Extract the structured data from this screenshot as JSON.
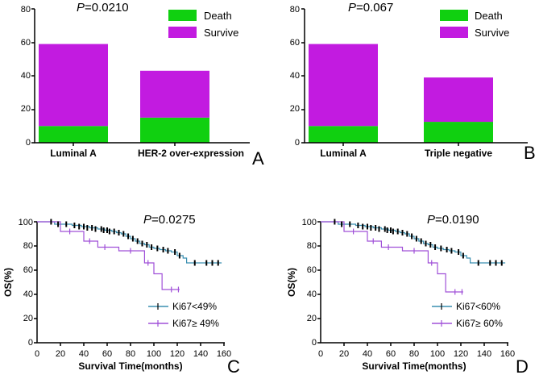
{
  "colors": {
    "death": "#10d010",
    "survive": "#c21be0",
    "km_low": "#3a8fb0",
    "km_high": "#a050d8"
  },
  "chart_data": [
    {
      "panel": "A",
      "type": "bar",
      "stacked": true,
      "p_prefix": "P",
      "p_value": "=0.0210",
      "categories": [
        "Luminal A",
        "HER-2 over-expression"
      ],
      "series": [
        {
          "name": "Death",
          "values": [
            10,
            15
          ],
          "color_key": "death"
        },
        {
          "name": "Survive",
          "values": [
            49,
            28
          ],
          "color_key": "survive"
        }
      ],
      "yticks": [
        "0",
        "20",
        "40",
        "60",
        "80"
      ],
      "ylim": [
        0,
        80
      ],
      "legend": "top-right"
    },
    {
      "panel": "B",
      "type": "bar",
      "stacked": true,
      "p_prefix": "P",
      "p_value": "=0.067",
      "categories": [
        "Luminal A",
        "Triple negative"
      ],
      "series": [
        {
          "name": "Death",
          "values": [
            10,
            12.5
          ],
          "color_key": "death"
        },
        {
          "name": "Survive",
          "values": [
            49,
            26.5
          ],
          "color_key": "survive"
        }
      ],
      "yticks": [
        "0",
        "20",
        "40",
        "60",
        "80"
      ],
      "ylim": [
        0,
        80
      ],
      "legend": "top-right"
    },
    {
      "panel": "C",
      "type": "line",
      "step": true,
      "p_prefix": "P",
      "p_value": "=0.0275",
      "xlabel": "Survival Time(months)",
      "ylabel": "OS(%)",
      "xticks": [
        "0",
        "20",
        "40",
        "60",
        "80",
        "100",
        "120",
        "140",
        "160"
      ],
      "yticks": [
        "0",
        "20",
        "40",
        "60",
        "80",
        "100"
      ],
      "xlim": [
        0,
        160
      ],
      "ylim": [
        0,
        100
      ],
      "legend": "bottom-right",
      "series": [
        {
          "name": "Ki67<49%",
          "color_key": "km_low",
          "points": [
            [
              0,
              100
            ],
            [
              10,
              100
            ],
            [
              15,
              98
            ],
            [
              22,
              98
            ],
            [
              30,
              97
            ],
            [
              38,
              96
            ],
            [
              45,
              95
            ],
            [
              52,
              94
            ],
            [
              58,
              93
            ],
            [
              64,
              92
            ],
            [
              68,
              91
            ],
            [
              72,
              90
            ],
            [
              76,
              88
            ],
            [
              80,
              86
            ],
            [
              84,
              84
            ],
            [
              88,
              82
            ],
            [
              92,
              81
            ],
            [
              96,
              79
            ],
            [
              100,
              78
            ],
            [
              105,
              77
            ],
            [
              110,
              76
            ],
            [
              115,
              75
            ],
            [
              120,
              72
            ],
            [
              125,
              70
            ],
            [
              128,
              66
            ],
            [
              140,
              66
            ],
            [
              158,
              66
            ]
          ],
          "censors": [
            [
              12,
              100
            ],
            [
              18,
              98
            ],
            [
              25,
              98
            ],
            [
              32,
              97
            ],
            [
              36,
              96
            ],
            [
              40,
              96
            ],
            [
              43,
              95
            ],
            [
              47,
              95
            ],
            [
              50,
              94
            ],
            [
              55,
              94
            ],
            [
              57,
              93
            ],
            [
              60,
              93
            ],
            [
              62,
              92
            ],
            [
              66,
              92
            ],
            [
              70,
              91
            ],
            [
              74,
              90
            ],
            [
              78,
              88
            ],
            [
              82,
              86
            ],
            [
              86,
              84
            ],
            [
              90,
              82
            ],
            [
              94,
              81
            ],
            [
              98,
              79
            ],
            [
              103,
              78
            ],
            [
              108,
              77
            ],
            [
              112,
              76
            ],
            [
              118,
              75
            ],
            [
              122,
              72
            ],
            [
              135,
              66
            ],
            [
              145,
              66
            ],
            [
              150,
              66
            ],
            [
              155,
              66
            ]
          ]
        },
        {
          "name": "Ki67≥ 49%",
          "color_key": "km_high",
          "points": [
            [
              0,
              100
            ],
            [
              15,
              100
            ],
            [
              20,
              92
            ],
            [
              35,
              92
            ],
            [
              40,
              84
            ],
            [
              48,
              84
            ],
            [
              52,
              79
            ],
            [
              65,
              79
            ],
            [
              70,
              76
            ],
            [
              88,
              76
            ],
            [
              92,
              66
            ],
            [
              96,
              66
            ],
            [
              100,
              57
            ],
            [
              104,
              57
            ],
            [
              107,
              44
            ],
            [
              122,
              44
            ]
          ],
          "censors": [
            [
              28,
              92
            ],
            [
              45,
              84
            ],
            [
              58,
              79
            ],
            [
              80,
              76
            ],
            [
              95,
              66
            ],
            [
              115,
              44
            ],
            [
              121,
              44
            ]
          ]
        }
      ]
    },
    {
      "panel": "D",
      "type": "line",
      "step": true,
      "p_prefix": "P",
      "p_value": "=0.0190",
      "xlabel": "Survival Time(months)",
      "ylabel": "OS(%)",
      "xticks": [
        "0",
        "20",
        "40",
        "60",
        "80",
        "100",
        "120",
        "140",
        "160"
      ],
      "yticks": [
        "0",
        "20",
        "40",
        "60",
        "80",
        "100"
      ],
      "xlim": [
        0,
        160
      ],
      "ylim": [
        0,
        100
      ],
      "legend": "bottom-right",
      "series": [
        {
          "name": "Ki67<60%",
          "color_key": "km_low",
          "points": [
            [
              0,
              100
            ],
            [
              10,
              100
            ],
            [
              15,
              98
            ],
            [
              22,
              98
            ],
            [
              30,
              97
            ],
            [
              38,
              96
            ],
            [
              45,
              95
            ],
            [
              52,
              94
            ],
            [
              58,
              93
            ],
            [
              64,
              92
            ],
            [
              68,
              91
            ],
            [
              72,
              90
            ],
            [
              76,
              88
            ],
            [
              80,
              86
            ],
            [
              84,
              84
            ],
            [
              88,
              82
            ],
            [
              92,
              81
            ],
            [
              96,
              79
            ],
            [
              100,
              78
            ],
            [
              105,
              77
            ],
            [
              110,
              76
            ],
            [
              115,
              75
            ],
            [
              120,
              72
            ],
            [
              125,
              70
            ],
            [
              128,
              66
            ],
            [
              140,
              66
            ],
            [
              158,
              66
            ]
          ],
          "censors": [
            [
              12,
              100
            ],
            [
              18,
              98
            ],
            [
              25,
              98
            ],
            [
              32,
              97
            ],
            [
              36,
              96
            ],
            [
              40,
              96
            ],
            [
              43,
              95
            ],
            [
              47,
              95
            ],
            [
              50,
              94
            ],
            [
              55,
              94
            ],
            [
              57,
              93
            ],
            [
              60,
              93
            ],
            [
              62,
              92
            ],
            [
              66,
              92
            ],
            [
              70,
              91
            ],
            [
              74,
              90
            ],
            [
              78,
              88
            ],
            [
              82,
              86
            ],
            [
              86,
              84
            ],
            [
              90,
              82
            ],
            [
              94,
              81
            ],
            [
              98,
              79
            ],
            [
              103,
              78
            ],
            [
              108,
              77
            ],
            [
              112,
              76
            ],
            [
              118,
              75
            ],
            [
              122,
              72
            ],
            [
              135,
              66
            ],
            [
              145,
              66
            ],
            [
              150,
              66
            ],
            [
              155,
              66
            ]
          ]
        },
        {
          "name": "Ki67≥ 60%",
          "color_key": "km_high",
          "points": [
            [
              0,
              100
            ],
            [
              15,
              100
            ],
            [
              20,
              92
            ],
            [
              35,
              92
            ],
            [
              40,
              84
            ],
            [
              48,
              84
            ],
            [
              52,
              79
            ],
            [
              65,
              79
            ],
            [
              70,
              76
            ],
            [
              88,
              76
            ],
            [
              92,
              66
            ],
            [
              96,
              66
            ],
            [
              100,
              57
            ],
            [
              104,
              57
            ],
            [
              107,
              42
            ],
            [
              122,
              42
            ]
          ],
          "censors": [
            [
              28,
              92
            ],
            [
              45,
              84
            ],
            [
              58,
              79
            ],
            [
              80,
              76
            ],
            [
              95,
              66
            ],
            [
              115,
              42
            ],
            [
              121,
              42
            ]
          ]
        }
      ]
    }
  ]
}
